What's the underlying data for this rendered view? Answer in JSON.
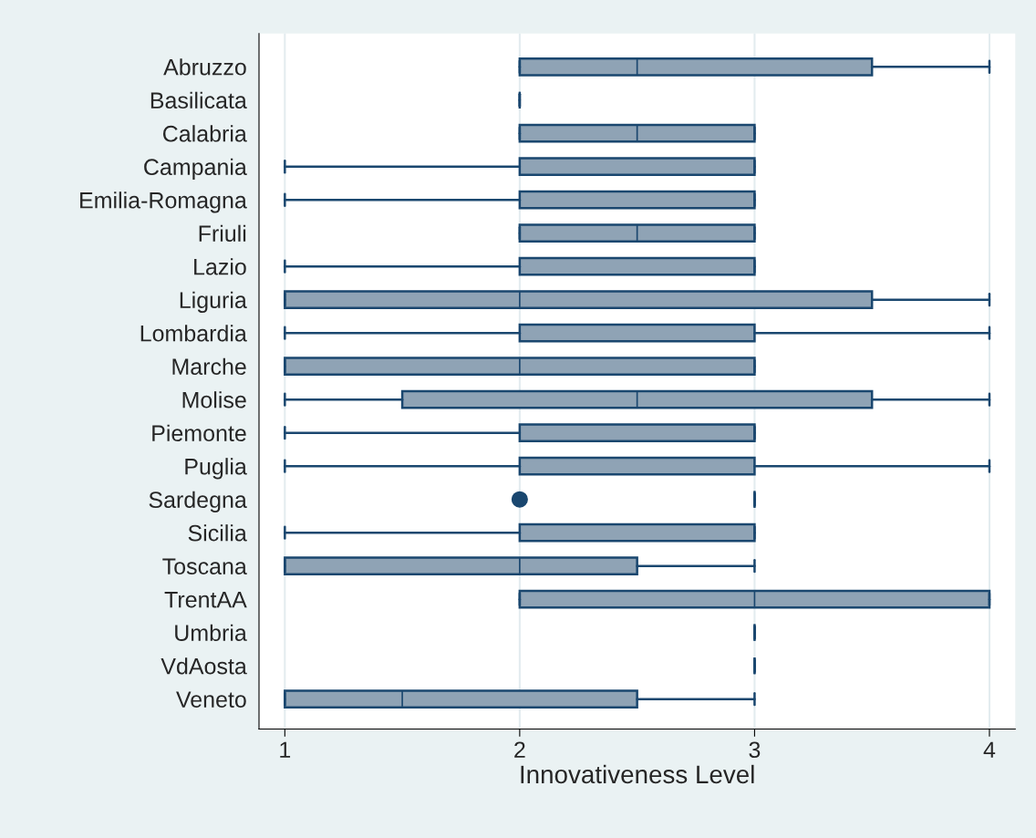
{
  "chart_data": {
    "type": "box",
    "orientation": "horizontal",
    "xlabel": "Innovativeness Level",
    "categories": [
      "Abruzzo",
      "Basilicata",
      "Calabria",
      "Campania",
      "Emilia-Romagna",
      "Friuli",
      "Lazio",
      "Liguria",
      "Lombardia",
      "Marche",
      "Molise",
      "Piemonte",
      "Puglia",
      "Sardegna",
      "Sicilia",
      "Toscana",
      "TrentAA",
      "Umbria",
      "VdAosta",
      "Veneto"
    ],
    "boxes": [
      {
        "low": 2,
        "q1": 2,
        "median": 2.5,
        "q3": 3.5,
        "high": 4
      },
      {
        "low": 2,
        "q1": 2,
        "median": 2,
        "q3": 2,
        "high": 2
      },
      {
        "low": 2,
        "q1": 2,
        "median": 2.5,
        "q3": 3,
        "high": 3
      },
      {
        "low": 1,
        "q1": 2,
        "median": 2,
        "q3": 3,
        "high": 3
      },
      {
        "low": 1,
        "q1": 2,
        "median": 2,
        "q3": 3,
        "high": 3
      },
      {
        "low": 2,
        "q1": 2,
        "median": 2.5,
        "q3": 3,
        "high": 3
      },
      {
        "low": 1,
        "q1": 2,
        "median": 2,
        "q3": 3,
        "high": 3
      },
      {
        "low": 1,
        "q1": 1,
        "median": 2,
        "q3": 3.5,
        "high": 4
      },
      {
        "low": 1,
        "q1": 2,
        "median": 2,
        "q3": 3,
        "high": 4
      },
      {
        "low": 1,
        "q1": 1,
        "median": 2,
        "q3": 3,
        "high": 3
      },
      {
        "low": 1,
        "q1": 1.5,
        "median": 2.5,
        "q3": 3.5,
        "high": 4
      },
      {
        "low": 1,
        "q1": 2,
        "median": 3,
        "q3": 3,
        "high": 3
      },
      {
        "low": 1,
        "q1": 2,
        "median": 2,
        "q3": 3,
        "high": 4
      },
      {
        "low": 3,
        "q1": 3,
        "median": 3,
        "q3": 3,
        "high": 3,
        "outliers": [
          2
        ]
      },
      {
        "low": 1,
        "q1": 2,
        "median": 2,
        "q3": 3,
        "high": 3
      },
      {
        "low": 1,
        "q1": 1,
        "median": 2,
        "q3": 2.5,
        "high": 3
      },
      {
        "low": 2,
        "q1": 2,
        "median": 3,
        "q3": 4,
        "high": 4
      },
      {
        "low": 3,
        "q1": 3,
        "median": 3,
        "q3": 3,
        "high": 3
      },
      {
        "low": 3,
        "q1": 3,
        "median": 3,
        "q3": 3,
        "high": 3
      },
      {
        "low": 1,
        "q1": 1,
        "median": 1.5,
        "q3": 2.5,
        "high": 3
      }
    ],
    "colors": [
      "#8fa3b5",
      "#1a476f",
      "#8fa3b5",
      "#8fa3b5",
      "#8fa3b5",
      "#8fa3b5",
      "#8fa3b5",
      "#8fa3b5",
      "#8fa3b5",
      "#8fa3b5",
      "#8fa3b5",
      "#8fa3b5",
      "#8fa3b5",
      "#1a476f",
      "#8fa3b5",
      "#8fa3b5",
      "#8fa3b5",
      "#1a476f",
      "#1a476f",
      "#8fa3b5"
    ],
    "xlim": [
      0.89,
      4.11
    ],
    "xticks": [
      1,
      2,
      3,
      4
    ],
    "grid": "x"
  }
}
